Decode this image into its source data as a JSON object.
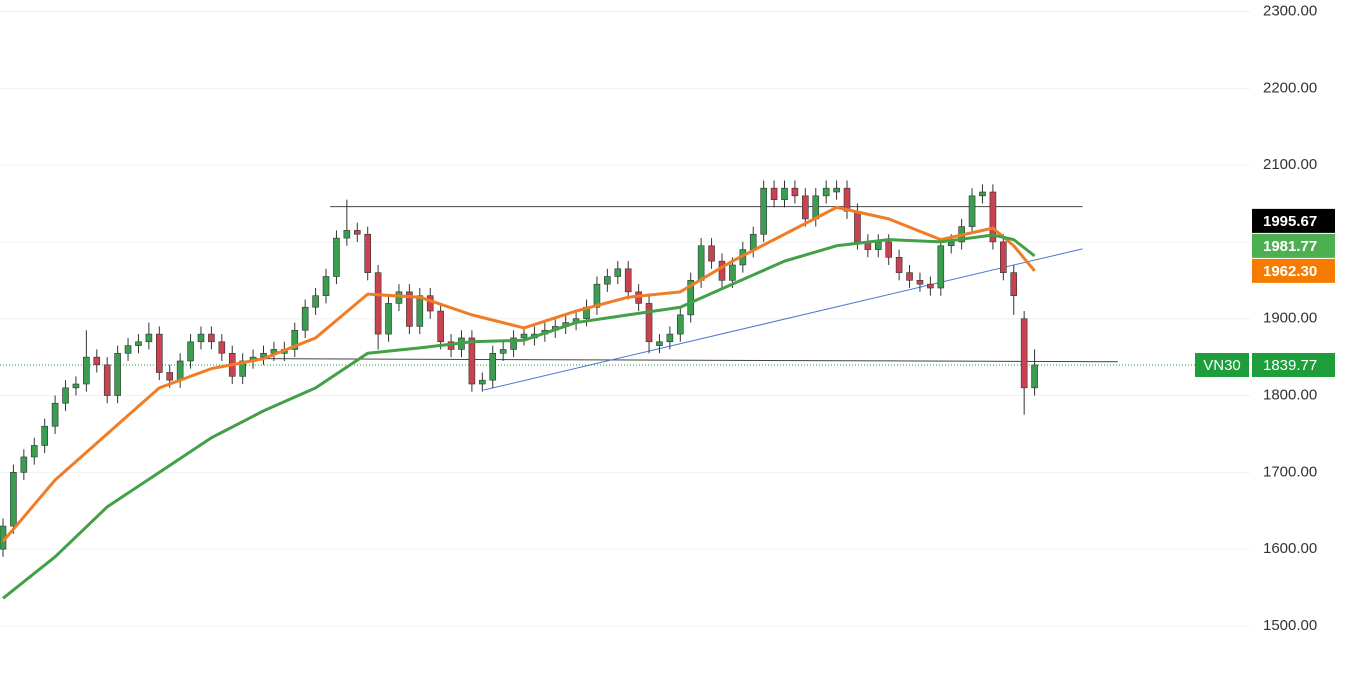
{
  "chart_data": {
    "type": "candlestick",
    "symbol": "VN30",
    "up_color": "#3a9d4f",
    "down_color": "#c8424f",
    "ylim": [
      1427,
      2315
    ],
    "yticks": [
      {
        "value": 1500,
        "label": "1500.00"
      },
      {
        "value": 1600,
        "label": "1600.00"
      },
      {
        "value": 1700,
        "label": "1700.00"
      },
      {
        "value": 1800,
        "label": "1800.00"
      },
      {
        "value": 1900,
        "label": "1900.00"
      },
      {
        "value": 2000,
        "label": "2000.00"
      },
      {
        "value": 2100,
        "label": "2100.00"
      },
      {
        "value": 2200,
        "label": "2200.00"
      },
      {
        "value": 2300,
        "label": "2300.00"
      }
    ],
    "grid": true,
    "open": [
      1600,
      1630,
      1700,
      1720,
      1735,
      1760,
      1790,
      1810,
      1815,
      1850,
      1840,
      1800,
      1855,
      1865,
      1870,
      1880,
      1830,
      1820,
      1845,
      1870,
      1880,
      1870,
      1855,
      1825,
      1845,
      1850,
      1855,
      1855,
      1860,
      1885,
      1915,
      1930,
      1955,
      2005,
      2015,
      2010,
      1960,
      1880,
      1920,
      1935,
      1890,
      1930,
      1910,
      1870,
      1860,
      1875,
      1815,
      1820,
      1855,
      1860,
      1875,
      1875,
      1880,
      1885,
      1890,
      1895,
      1900,
      1915,
      1945,
      1955,
      1965,
      1935,
      1920,
      1865,
      1870,
      1880,
      1905,
      1950,
      1995,
      1975,
      1950,
      1970,
      1990,
      2010,
      2070,
      2055,
      2070,
      2060,
      2030,
      2060,
      2065,
      2070,
      2040,
      2000,
      1990,
      2000,
      1980,
      1960,
      1950,
      1945,
      1940,
      1995,
      2000,
      2020,
      2060,
      2065,
      2000,
      1960,
      1900,
      1810
    ],
    "high": [
      1640,
      1710,
      1730,
      1745,
      1770,
      1800,
      1820,
      1825,
      1885,
      1860,
      1850,
      1865,
      1875,
      1880,
      1895,
      1890,
      1840,
      1855,
      1880,
      1890,
      1890,
      1880,
      1865,
      1855,
      1860,
      1865,
      1870,
      1870,
      1895,
      1925,
      1940,
      1965,
      2015,
      2055,
      2025,
      2020,
      1970,
      1930,
      1945,
      1945,
      1940,
      1940,
      1920,
      1880,
      1885,
      1885,
      1830,
      1865,
      1870,
      1885,
      1890,
      1890,
      1895,
      1900,
      1905,
      1910,
      1925,
      1955,
      1965,
      1975,
      1975,
      1945,
      1930,
      1880,
      1890,
      1915,
      1960,
      2005,
      2005,
      1985,
      1980,
      2000,
      2020,
      2080,
      2080,
      2080,
      2080,
      2070,
      2070,
      2080,
      2080,
      2080,
      2050,
      2010,
      2010,
      2010,
      1990,
      1970,
      1960,
      1955,
      2005,
      2010,
      2030,
      2070,
      2075,
      2075,
      2010,
      1970,
      1910,
      1860
    ],
    "low": [
      1590,
      1620,
      1690,
      1710,
      1725,
      1750,
      1780,
      1800,
      1805,
      1830,
      1790,
      1790,
      1845,
      1855,
      1860,
      1820,
      1810,
      1810,
      1835,
      1860,
      1860,
      1845,
      1815,
      1815,
      1835,
      1840,
      1845,
      1845,
      1850,
      1875,
      1905,
      1920,
      1945,
      1995,
      2000,
      1950,
      1860,
      1870,
      1910,
      1880,
      1880,
      1900,
      1860,
      1850,
      1850,
      1805,
      1805,
      1810,
      1845,
      1850,
      1865,
      1865,
      1870,
      1875,
      1880,
      1885,
      1890,
      1905,
      1935,
      1945,
      1925,
      1910,
      1855,
      1855,
      1860,
      1870,
      1895,
      1940,
      1965,
      1940,
      1940,
      1960,
      1980,
      2000,
      2045,
      2045,
      2050,
      2020,
      2020,
      2050,
      2055,
      2030,
      1990,
      1980,
      1980,
      1970,
      1950,
      1940,
      1935,
      1930,
      1930,
      1985,
      1990,
      2010,
      2050,
      1990,
      1950,
      1905,
      1775,
      1800
    ],
    "close": [
      1630,
      1700,
      1720,
      1735,
      1760,
      1790,
      1810,
      1815,
      1850,
      1840,
      1800,
      1855,
      1865,
      1870,
      1880,
      1830,
      1820,
      1845,
      1870,
      1880,
      1870,
      1855,
      1825,
      1845,
      1850,
      1855,
      1860,
      1860,
      1885,
      1915,
      1930,
      1955,
      2005,
      2015,
      2010,
      1960,
      1880,
      1920,
      1935,
      1890,
      1930,
      1910,
      1870,
      1860,
      1875,
      1815,
      1820,
      1855,
      1860,
      1875,
      1880,
      1880,
      1885,
      1890,
      1895,
      1900,
      1915,
      1945,
      1955,
      1965,
      1935,
      1920,
      1870,
      1870,
      1880,
      1905,
      1950,
      1995,
      1975,
      1950,
      1970,
      1990,
      2010,
      2070,
      2055,
      2070,
      2060,
      2030,
      2060,
      2070,
      2070,
      2040,
      2000,
      1990,
      2000,
      1980,
      1960,
      1950,
      1945,
      1940,
      1995,
      2000,
      2020,
      2060,
      2065,
      2000,
      1960,
      1930,
      1810,
      1839.77
    ],
    "lines": [
      {
        "color": "#f07d26",
        "x": [
          0,
          5,
          10,
          15,
          20,
          25,
          30,
          35,
          40,
          45,
          50,
          55,
          60,
          65,
          70,
          75,
          80,
          85,
          90,
          95,
          97,
          99
        ],
        "values": [
          1610,
          1690,
          1750,
          1810,
          1835,
          1848,
          1875,
          1932,
          1928,
          1905,
          1888,
          1910,
          1928,
          1935,
          1975,
          2010,
          2045,
          2030,
          2003,
          2018,
          1995,
          1962.3
        ]
      },
      {
        "color": "#43a047",
        "x": [
          0,
          5,
          10,
          15,
          20,
          25,
          30,
          35,
          40,
          45,
          50,
          55,
          60,
          65,
          70,
          75,
          80,
          85,
          90,
          95,
          97,
          99
        ],
        "values": [
          1536,
          1590,
          1655,
          1700,
          1745,
          1780,
          1810,
          1855,
          1862,
          1870,
          1872,
          1895,
          1905,
          1915,
          1945,
          1975,
          1995,
          2003,
          2000,
          2009,
          2003,
          1981.77
        ]
      }
    ],
    "drawings": [
      {
        "color": "#444444",
        "x": [
          31.4,
          103.6
        ],
        "values": [
          2046,
          2046
        ]
      },
      {
        "color": "#444444",
        "x": [
          23.7,
          107
        ],
        "values": [
          1848,
          1844
        ]
      },
      {
        "color": "#4a78d0",
        "x": [
          46.1,
          103.6
        ],
        "values": [
          1807,
          1991
        ]
      }
    ],
    "price_tags": [
      {
        "value": 1995.67,
        "label": "1995.67",
        "color": "#000000"
      },
      {
        "value": 1981.77,
        "label": "1981.77",
        "color": "#4caf50"
      },
      {
        "value": 1962.3,
        "label": "1962.30",
        "color": "#f57c00"
      }
    ],
    "last_price": {
      "value": 1839.77,
      "label": "1839.77",
      "color": "#1e9e3a"
    }
  }
}
